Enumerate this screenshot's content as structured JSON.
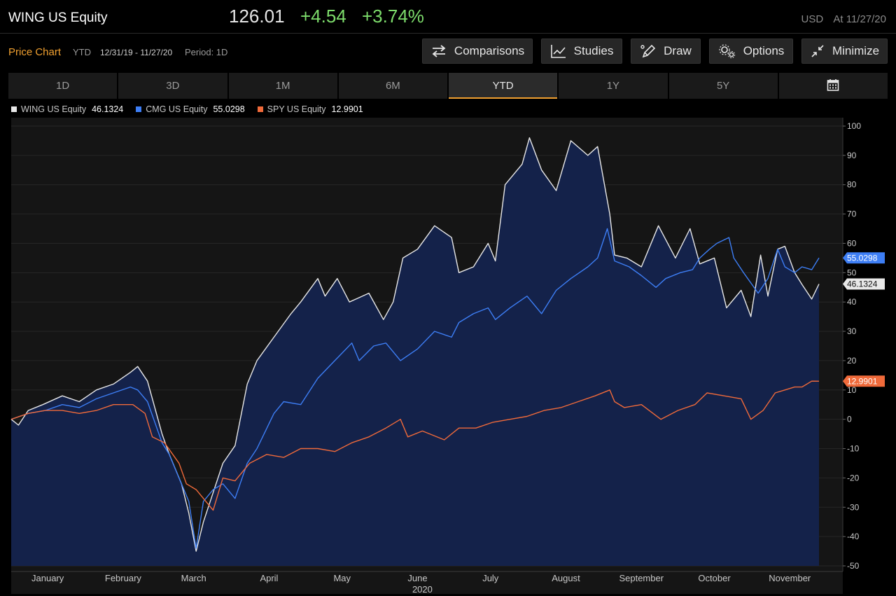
{
  "header": {
    "ticker": "WING US Equity",
    "last_price": "126.01",
    "net_change": "+4.54",
    "pct_change": "+3.74%",
    "currency": "USD",
    "as_of": "At 11/27/20"
  },
  "subheader": {
    "title": "Price Chart",
    "range_code": "YTD",
    "date_range": "12/31/19 - 11/27/20",
    "period": "Period: 1D"
  },
  "toolbar": {
    "comparisons": "Comparisons",
    "studies": "Studies",
    "draw": "Draw",
    "options": "Options",
    "minimize": "Minimize"
  },
  "tabs": [
    "1D",
    "3D",
    "1M",
    "6M",
    "YTD",
    "1Y",
    "5Y"
  ],
  "active_tab": "YTD",
  "icons": {
    "comparisons": "swap-arrows-icon",
    "studies": "line-chart-icon",
    "draw": "pen-icon",
    "options": "gears-icon",
    "minimize": "collapse-arrows-icon",
    "calendar": "calendar-icon"
  },
  "colors": {
    "accent": "#f0a030",
    "positive": "#7ddc6b",
    "wing": "#e8e8e8",
    "cmg": "#3d7ef5",
    "spy": "#f06a3a",
    "area_fill": "#14224a"
  },
  "chart_data": {
    "type": "area",
    "yunit": "percent change",
    "ylim": [
      -50,
      100
    ],
    "yticks": [
      100,
      90,
      80,
      70,
      60,
      50,
      40,
      30,
      20,
      10,
      0,
      -10,
      -20,
      -30,
      -40,
      -50
    ],
    "xlim": [
      "2019-12-31",
      "2020-11-27"
    ],
    "x_month_labels": [
      {
        "label": "January",
        "date": "2020-01-15"
      },
      {
        "label": "February",
        "date": "2020-02-15"
      },
      {
        "label": "March",
        "date": "2020-03-15"
      },
      {
        "label": "April",
        "date": "2020-04-15"
      },
      {
        "label": "May",
        "date": "2020-05-15"
      },
      {
        "label": "June",
        "date": "2020-06-15"
      },
      {
        "label": "July",
        "date": "2020-07-15"
      },
      {
        "label": "August",
        "date": "2020-08-15"
      },
      {
        "label": "September",
        "date": "2020-09-15"
      },
      {
        "label": "October",
        "date": "2020-10-15"
      },
      {
        "label": "November",
        "date": "2020-11-15"
      }
    ],
    "x_year_label": "2020",
    "grid": true,
    "legend_position": "top-left",
    "series": [
      {
        "name": "WING US Equity",
        "last_value": "46.1324",
        "color": "#e8e8e8",
        "fill": true,
        "points": [
          [
            "2019-12-31",
            0
          ],
          [
            "2020-01-03",
            -2
          ],
          [
            "2020-01-07",
            3
          ],
          [
            "2020-01-13",
            5
          ],
          [
            "2020-01-21",
            8
          ],
          [
            "2020-01-28",
            6
          ],
          [
            "2020-02-04",
            10
          ],
          [
            "2020-02-11",
            12
          ],
          [
            "2020-02-18",
            16
          ],
          [
            "2020-02-21",
            18
          ],
          [
            "2020-02-25",
            13
          ],
          [
            "2020-03-02",
            -5
          ],
          [
            "2020-03-05",
            -12
          ],
          [
            "2020-03-10",
            -22
          ],
          [
            "2020-03-13",
            -32
          ],
          [
            "2020-03-16",
            -45
          ],
          [
            "2020-03-19",
            -35
          ],
          [
            "2020-03-23",
            -25
          ],
          [
            "2020-03-27",
            -15
          ],
          [
            "2020-04-01",
            -9
          ],
          [
            "2020-04-06",
            12
          ],
          [
            "2020-04-10",
            20
          ],
          [
            "2020-04-17",
            28
          ],
          [
            "2020-04-24",
            36
          ],
          [
            "2020-04-28",
            40
          ],
          [
            "2020-05-05",
            48
          ],
          [
            "2020-05-08",
            42
          ],
          [
            "2020-05-13",
            48
          ],
          [
            "2020-05-18",
            40
          ],
          [
            "2020-05-26",
            43
          ],
          [
            "2020-06-01",
            34
          ],
          [
            "2020-06-05",
            40
          ],
          [
            "2020-06-09",
            55
          ],
          [
            "2020-06-15",
            58
          ],
          [
            "2020-06-22",
            66
          ],
          [
            "2020-06-29",
            62
          ],
          [
            "2020-07-02",
            50
          ],
          [
            "2020-07-08",
            52
          ],
          [
            "2020-07-14",
            60
          ],
          [
            "2020-07-17",
            54
          ],
          [
            "2020-07-21",
            80
          ],
          [
            "2020-07-28",
            87
          ],
          [
            "2020-07-31",
            96
          ],
          [
            "2020-08-05",
            85
          ],
          [
            "2020-08-11",
            78
          ],
          [
            "2020-08-17",
            95
          ],
          [
            "2020-08-24",
            90
          ],
          [
            "2020-08-28",
            93
          ],
          [
            "2020-09-02",
            70
          ],
          [
            "2020-09-04",
            56
          ],
          [
            "2020-09-09",
            55
          ],
          [
            "2020-09-15",
            52
          ],
          [
            "2020-09-22",
            66
          ],
          [
            "2020-09-29",
            55
          ],
          [
            "2020-10-05",
            65
          ],
          [
            "2020-10-09",
            53
          ],
          [
            "2020-10-15",
            55
          ],
          [
            "2020-10-20",
            38
          ],
          [
            "2020-10-26",
            44
          ],
          [
            "2020-10-30",
            35
          ],
          [
            "2020-11-03",
            56
          ],
          [
            "2020-11-06",
            42
          ],
          [
            "2020-11-10",
            58
          ],
          [
            "2020-11-13",
            59
          ],
          [
            "2020-11-17",
            50
          ],
          [
            "2020-11-20",
            46
          ],
          [
            "2020-11-24",
            41
          ],
          [
            "2020-11-27",
            46.1324
          ]
        ]
      },
      {
        "name": "CMG US Equity",
        "last_value": "55.0298",
        "color": "#3d7ef5",
        "fill": false,
        "points": [
          [
            "2019-12-31",
            0
          ],
          [
            "2020-01-07",
            2
          ],
          [
            "2020-01-14",
            3
          ],
          [
            "2020-01-21",
            5
          ],
          [
            "2020-01-28",
            4
          ],
          [
            "2020-02-04",
            7
          ],
          [
            "2020-02-11",
            9
          ],
          [
            "2020-02-18",
            11
          ],
          [
            "2020-02-21",
            10
          ],
          [
            "2020-02-25",
            6
          ],
          [
            "2020-03-02",
            -8
          ],
          [
            "2020-03-05",
            -12
          ],
          [
            "2020-03-10",
            -22
          ],
          [
            "2020-03-13",
            -28
          ],
          [
            "2020-03-16",
            -44
          ],
          [
            "2020-03-19",
            -28
          ],
          [
            "2020-03-23",
            -24
          ],
          [
            "2020-03-27",
            -22
          ],
          [
            "2020-04-01",
            -27
          ],
          [
            "2020-04-06",
            -15
          ],
          [
            "2020-04-10",
            -10
          ],
          [
            "2020-04-17",
            2
          ],
          [
            "2020-04-21",
            6
          ],
          [
            "2020-04-28",
            5
          ],
          [
            "2020-05-05",
            14
          ],
          [
            "2020-05-12",
            20
          ],
          [
            "2020-05-19",
            26
          ],
          [
            "2020-05-22",
            20
          ],
          [
            "2020-05-28",
            25
          ],
          [
            "2020-06-02",
            26
          ],
          [
            "2020-06-08",
            20
          ],
          [
            "2020-06-15",
            24
          ],
          [
            "2020-06-22",
            30
          ],
          [
            "2020-06-29",
            28
          ],
          [
            "2020-07-02",
            33
          ],
          [
            "2020-07-08",
            36
          ],
          [
            "2020-07-14",
            38
          ],
          [
            "2020-07-17",
            34
          ],
          [
            "2020-07-23",
            38
          ],
          [
            "2020-07-30",
            42
          ],
          [
            "2020-08-05",
            36
          ],
          [
            "2020-08-11",
            44
          ],
          [
            "2020-08-17",
            48
          ],
          [
            "2020-08-24",
            52
          ],
          [
            "2020-08-28",
            55
          ],
          [
            "2020-09-01",
            65
          ],
          [
            "2020-09-04",
            54
          ],
          [
            "2020-09-10",
            52
          ],
          [
            "2020-09-15",
            49
          ],
          [
            "2020-09-21",
            45
          ],
          [
            "2020-09-25",
            48
          ],
          [
            "2020-10-01",
            50
          ],
          [
            "2020-10-06",
            51
          ],
          [
            "2020-10-09",
            55
          ],
          [
            "2020-10-13",
            58
          ],
          [
            "2020-10-16",
            60
          ],
          [
            "2020-10-21",
            62
          ],
          [
            "2020-10-23",
            55
          ],
          [
            "2020-10-27",
            50
          ],
          [
            "2020-11-02",
            43
          ],
          [
            "2020-11-06",
            48
          ],
          [
            "2020-11-10",
            58
          ],
          [
            "2020-11-13",
            52
          ],
          [
            "2020-11-17",
            50
          ],
          [
            "2020-11-20",
            52
          ],
          [
            "2020-11-24",
            51
          ],
          [
            "2020-11-27",
            55.0298
          ]
        ]
      },
      {
        "name": "SPY US Equity",
        "last_value": "12.9901",
        "color": "#f06a3a",
        "fill": false,
        "points": [
          [
            "2019-12-31",
            0
          ],
          [
            "2020-01-07",
            2
          ],
          [
            "2020-01-14",
            3
          ],
          [
            "2020-01-21",
            3
          ],
          [
            "2020-01-28",
            2
          ],
          [
            "2020-02-04",
            3
          ],
          [
            "2020-02-11",
            5
          ],
          [
            "2020-02-19",
            5
          ],
          [
            "2020-02-24",
            2
          ],
          [
            "2020-02-27",
            -6
          ],
          [
            "2020-03-03",
            -8
          ],
          [
            "2020-03-09",
            -15
          ],
          [
            "2020-03-12",
            -22
          ],
          [
            "2020-03-16",
            -24
          ],
          [
            "2020-03-20",
            -28
          ],
          [
            "2020-03-23",
            -31
          ],
          [
            "2020-03-27",
            -20
          ],
          [
            "2020-04-01",
            -21
          ],
          [
            "2020-04-07",
            -15
          ],
          [
            "2020-04-14",
            -12
          ],
          [
            "2020-04-21",
            -13
          ],
          [
            "2020-04-28",
            -10
          ],
          [
            "2020-05-05",
            -10
          ],
          [
            "2020-05-12",
            -11
          ],
          [
            "2020-05-19",
            -8
          ],
          [
            "2020-05-26",
            -6
          ],
          [
            "2020-06-02",
            -3
          ],
          [
            "2020-06-08",
            0
          ],
          [
            "2020-06-11",
            -6
          ],
          [
            "2020-06-17",
            -4
          ],
          [
            "2020-06-26",
            -7
          ],
          [
            "2020-07-02",
            -3
          ],
          [
            "2020-07-09",
            -3
          ],
          [
            "2020-07-16",
            -1
          ],
          [
            "2020-07-23",
            0
          ],
          [
            "2020-07-30",
            1
          ],
          [
            "2020-08-06",
            3
          ],
          [
            "2020-08-13",
            4
          ],
          [
            "2020-08-20",
            6
          ],
          [
            "2020-08-27",
            8
          ],
          [
            "2020-09-02",
            10
          ],
          [
            "2020-09-04",
            6
          ],
          [
            "2020-09-08",
            4
          ],
          [
            "2020-09-15",
            5
          ],
          [
            "2020-09-23",
            0
          ],
          [
            "2020-09-30",
            3
          ],
          [
            "2020-10-07",
            5
          ],
          [
            "2020-10-12",
            9
          ],
          [
            "2020-10-19",
            8
          ],
          [
            "2020-10-26",
            7
          ],
          [
            "2020-10-30",
            0
          ],
          [
            "2020-11-04",
            3
          ],
          [
            "2020-11-09",
            9
          ],
          [
            "2020-11-13",
            10
          ],
          [
            "2020-11-17",
            11
          ],
          [
            "2020-11-20",
            11
          ],
          [
            "2020-11-24",
            13
          ],
          [
            "2020-11-27",
            12.9901
          ]
        ]
      }
    ]
  }
}
